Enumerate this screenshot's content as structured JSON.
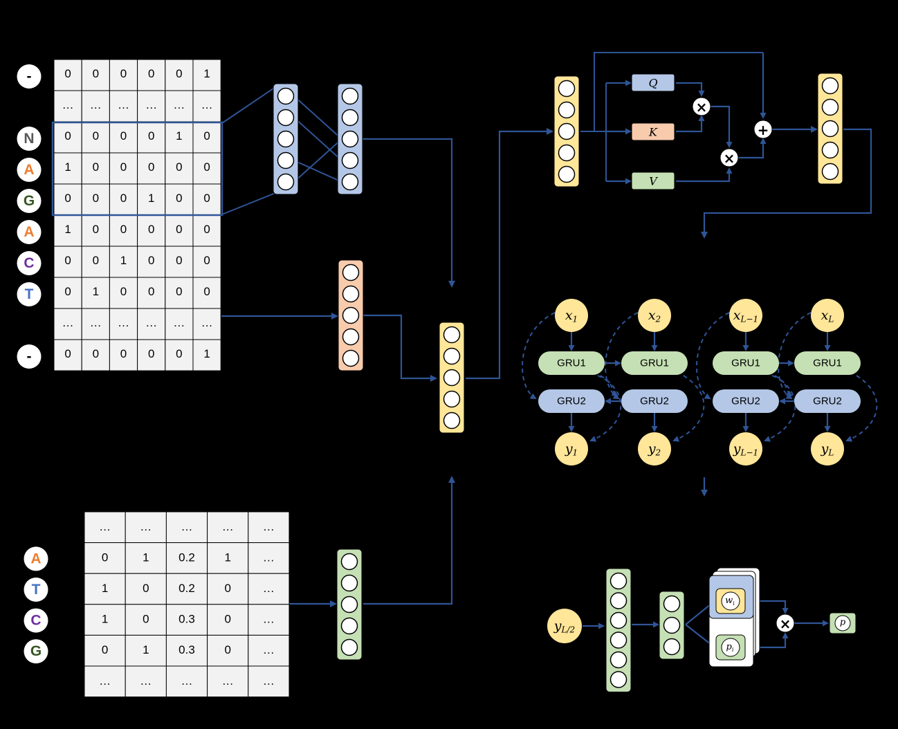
{
  "onehot": {
    "row_labels": [
      {
        "text": "-",
        "color": "#000000"
      },
      {
        "text": "",
        "color": ""
      },
      {
        "text": "N",
        "color": "#595959"
      },
      {
        "text": "A",
        "color": "#ED7D31"
      },
      {
        "text": "G",
        "color": "#375623"
      },
      {
        "text": "A",
        "color": "#ED7D31"
      },
      {
        "text": "C",
        "color": "#7030A0"
      },
      {
        "text": "T",
        "color": "#4472C4"
      },
      {
        "text": "",
        "color": ""
      },
      {
        "text": "-",
        "color": "#000000"
      }
    ],
    "rows": [
      [
        "0",
        "0",
        "0",
        "0",
        "0",
        "1"
      ],
      [
        "…",
        "…",
        "…",
        "…",
        "…",
        "…"
      ],
      [
        "0",
        "0",
        "0",
        "0",
        "1",
        "0"
      ],
      [
        "1",
        "0",
        "0",
        "0",
        "0",
        "0"
      ],
      [
        "0",
        "0",
        "0",
        "1",
        "0",
        "0"
      ],
      [
        "1",
        "0",
        "0",
        "0",
        "0",
        "0"
      ],
      [
        "0",
        "0",
        "1",
        "0",
        "0",
        "0"
      ],
      [
        "0",
        "1",
        "0",
        "0",
        "0",
        "0"
      ],
      [
        "…",
        "…",
        "…",
        "…",
        "…",
        "…"
      ],
      [
        "0",
        "0",
        "0",
        "0",
        "0",
        "1"
      ]
    ]
  },
  "features": {
    "row_labels": [
      {
        "text": "",
        "color": ""
      },
      {
        "text": "A",
        "color": "#ED7D31"
      },
      {
        "text": "T",
        "color": "#4472C4"
      },
      {
        "text": "C",
        "color": "#7030A0"
      },
      {
        "text": "G",
        "color": "#375623"
      },
      {
        "text": "",
        "color": ""
      }
    ],
    "rows": [
      [
        "…",
        "…",
        "…",
        "…",
        "…"
      ],
      [
        "0",
        "1",
        "0.2",
        "1",
        "…"
      ],
      [
        "1",
        "0",
        "0.2",
        "0",
        "…"
      ],
      [
        "1",
        "0",
        "0.3",
        "0",
        "…"
      ],
      [
        "0",
        "1",
        "0.3",
        "0",
        "…"
      ],
      [
        "…",
        "…",
        "…",
        "…",
        "…"
      ]
    ]
  },
  "attention": {
    "q": "Q",
    "k": "K",
    "v": "V",
    "mul": "×",
    "add": "+"
  },
  "gru": {
    "columns": [
      {
        "x_base": "x",
        "x_sub": "1",
        "y_base": "y",
        "y_sub": "1"
      },
      {
        "x_base": "x",
        "x_sub": "2",
        "y_base": "y",
        "y_sub": "2"
      },
      {
        "x_base": "x",
        "x_sub": "L−1",
        "y_base": "y",
        "y_sub": "L−1"
      },
      {
        "x_base": "x",
        "x_sub": "L",
        "y_base": "y",
        "y_sub": "L"
      }
    ],
    "gru1_label": "GRU1",
    "gru2_label": "GRU2"
  },
  "output": {
    "input_base": "y",
    "input_sub": "L/2",
    "w_base": "w",
    "w_sub": "i",
    "p_base": "p",
    "p_sub": "i",
    "result": "p",
    "mul": "×"
  },
  "colors": {
    "arrow": "#2F5597",
    "blue_fill": "#B4C7E7",
    "yellow_fill": "#FFE699",
    "orange_fill": "#F8CBAD",
    "green_fill": "#C5E0B4",
    "cell_fill": "#F2F2F2"
  }
}
